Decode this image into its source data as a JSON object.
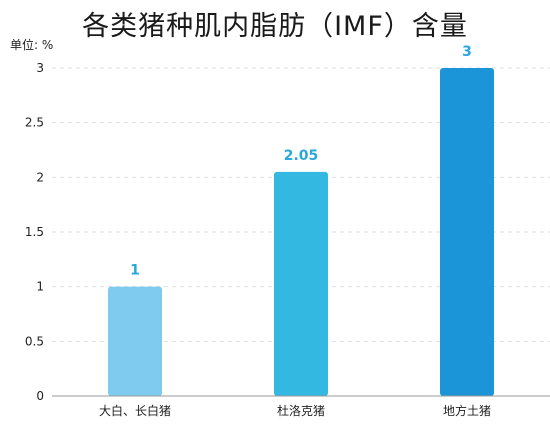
{
  "chart_data": {
    "type": "bar",
    "title": "各类猪种肌内脂肪（IMF）含量",
    "ylabel": "单位: %",
    "xlabel": "",
    "categories": [
      "大白、长白猪",
      "杜洛克猪",
      "地方土猪"
    ],
    "values": [
      1,
      2.05,
      3
    ],
    "data_labels": [
      "1",
      "2.05",
      "3"
    ],
    "bar_colors": [
      "#7ecbef",
      "#33b8e2",
      "#1c95d8"
    ],
    "label_color": "#2aa7dc",
    "ylim": [
      0,
      3
    ],
    "yticks": [
      0,
      0.5,
      1,
      1.5,
      2,
      2.5,
      3
    ],
    "ytick_labels": [
      "0",
      "0.5",
      "1",
      "1.5",
      "2",
      "2.5",
      "3"
    ],
    "grid": true,
    "legend": "none"
  }
}
